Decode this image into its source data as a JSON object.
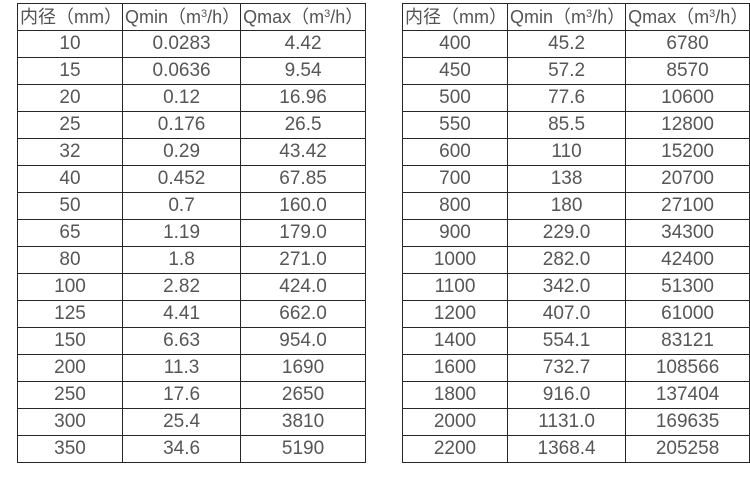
{
  "colors": {
    "background": "#ffffff",
    "grid_border": "#262626",
    "text": "#565656"
  },
  "tables": [
    {
      "title": "small-diameter-flow-ranges",
      "header": {
        "diameter": "内径（mm）",
        "qmin": {
          "prefix": "Qmin（m",
          "sup": "3",
          "suffix": "/h）"
        },
        "qmax": {
          "prefix": "Qmax（m",
          "sup": "3",
          "suffix": "/h）"
        }
      },
      "rows": [
        [
          "10",
          "0.0283",
          "4.42"
        ],
        [
          "15",
          "0.0636",
          "9.54"
        ],
        [
          "20",
          "0.12",
          "16.96"
        ],
        [
          "25",
          "0.176",
          "26.5"
        ],
        [
          "32",
          "0.29",
          "43.42"
        ],
        [
          "40",
          "0.452",
          "67.85"
        ],
        [
          "50",
          "0.7",
          "160.0"
        ],
        [
          "65",
          "1.19",
          "179.0"
        ],
        [
          "80",
          "1.8",
          "271.0"
        ],
        [
          "100",
          "2.82",
          "424.0"
        ],
        [
          "125",
          "4.41",
          "662.0"
        ],
        [
          "150",
          "6.63",
          "954.0"
        ],
        [
          "200",
          "11.3",
          "1690"
        ],
        [
          "250",
          "17.6",
          "2650"
        ],
        [
          "300",
          "25.4",
          "3810"
        ],
        [
          "350",
          "34.6",
          "5190"
        ]
      ]
    },
    {
      "title": "large-diameter-flow-ranges",
      "header": {
        "diameter": "内径（mm）",
        "qmin": {
          "prefix": "Qmin（m",
          "sup": "3",
          "suffix": "/h）"
        },
        "qmax": {
          "prefix": "Qmax（m",
          "sup": "3",
          "suffix": "/h）"
        }
      },
      "rows": [
        [
          "400",
          "45.2",
          "6780"
        ],
        [
          "450",
          "57.2",
          "8570"
        ],
        [
          "500",
          "77.6",
          "10600"
        ],
        [
          "550",
          "85.5",
          "12800"
        ],
        [
          "600",
          "110",
          "15200"
        ],
        [
          "700",
          "138",
          "20700"
        ],
        [
          "800",
          "180",
          "27100"
        ],
        [
          "900",
          "229.0",
          "34300"
        ],
        [
          "1000",
          "282.0",
          "42400"
        ],
        [
          "1100",
          "342.0",
          "51300"
        ],
        [
          "1200",
          "407.0",
          "61000"
        ],
        [
          "1400",
          "554.1",
          "83121"
        ],
        [
          "1600",
          "732.7",
          "108566"
        ],
        [
          "1800",
          "916.0",
          "137404"
        ],
        [
          "2000",
          "1131.0",
          "169635"
        ],
        [
          "2200",
          "1368.4",
          "205258"
        ]
      ]
    }
  ]
}
